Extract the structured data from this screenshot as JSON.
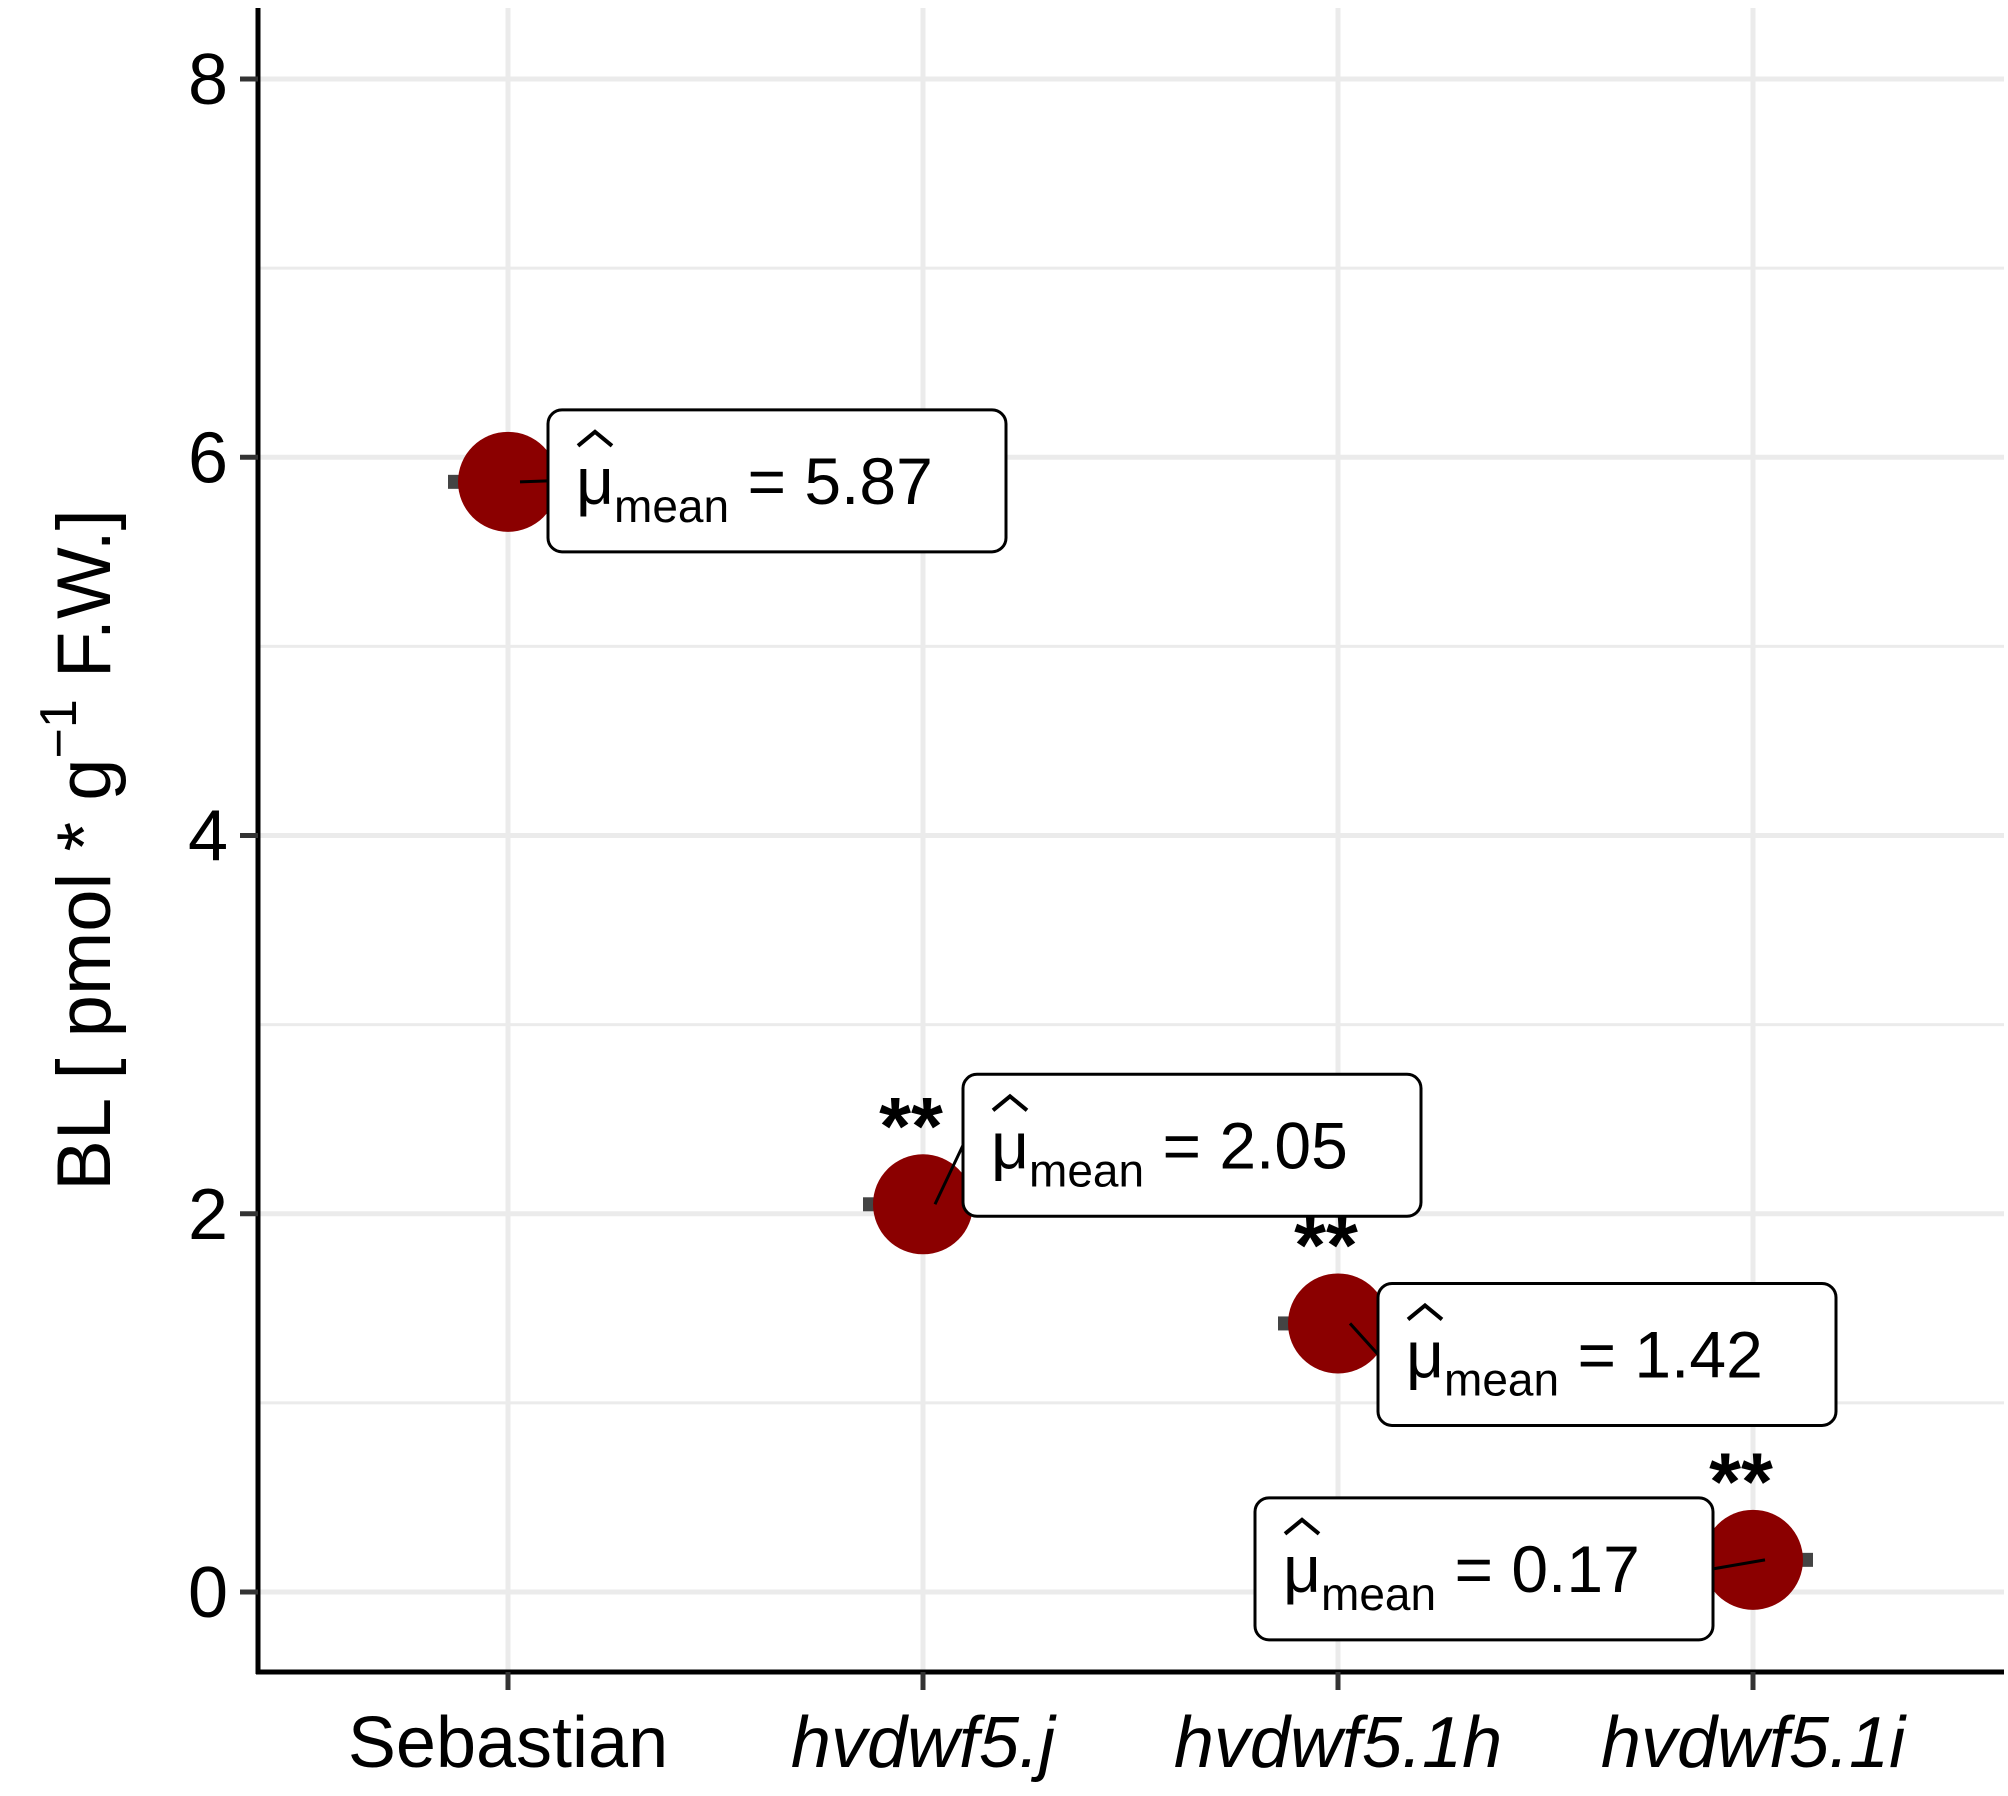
{
  "chart_data": {
    "type": "scatter",
    "categories": [
      "Sebastian",
      "hvdwf5.j",
      "hvdwf5.1h",
      "hvdwf5.1i"
    ],
    "italic_categories": [
      false,
      true,
      true,
      true
    ],
    "values": [
      5.87,
      2.05,
      1.42,
      0.17
    ],
    "ylabel": "BL [ pmol * g",
    "ylabel_superscript": "−1",
    "ylabel_suffix": " F.W.]",
    "yticks": [
      "0",
      "2",
      "4",
      "6",
      "8"
    ],
    "ylim": [
      -0.35,
      8.4
    ],
    "grid": true,
    "annotations": [
      {
        "symbol": "μ",
        "subscript": "mean",
        "text": "= 5.87",
        "significance": "",
        "side": "right"
      },
      {
        "symbol": "μ",
        "subscript": "mean",
        "text": "= 2.05",
        "significance": "**",
        "side": "right"
      },
      {
        "symbol": "μ",
        "subscript": "mean",
        "text": "= 1.42",
        "significance": "**",
        "side": "right"
      },
      {
        "symbol": "μ",
        "subscript": "mean",
        "text": "= 0.17",
        "significance": "**",
        "side": "left"
      }
    ],
    "point_color": "#8b0000",
    "grid_color": "#ebebeb"
  }
}
